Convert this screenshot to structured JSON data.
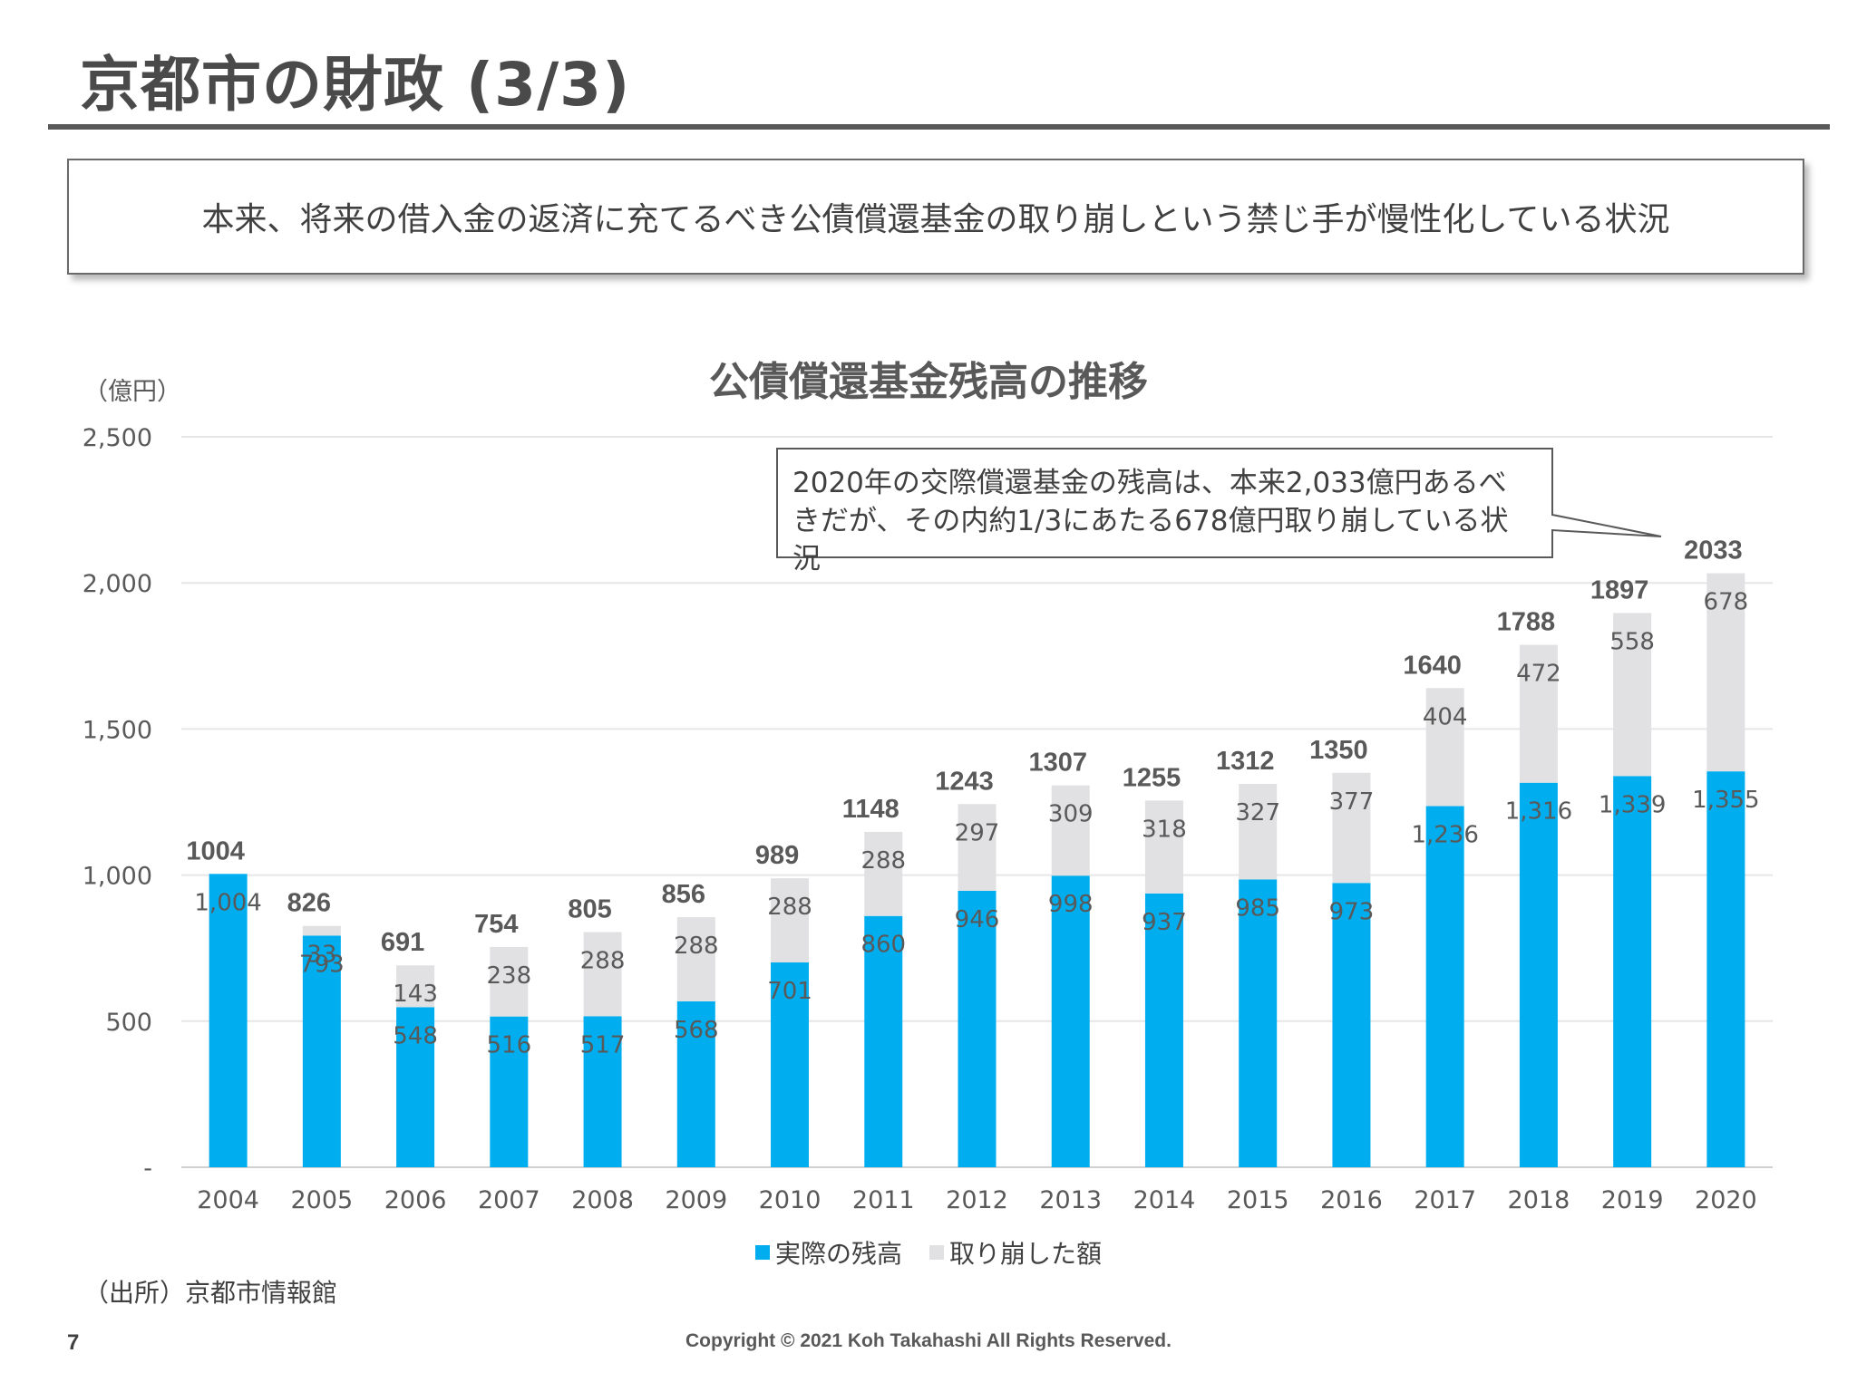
{
  "slide": {
    "title": "京都市の財政 (3/3)",
    "summary": "本来、将来の借入金の返済に充てるべき公債償還基金の取り崩しという禁じ手が慢性化している状況",
    "source": "（出所）京都市情報館",
    "page_number": "7",
    "copyright": "Copyright © 2021 Koh Takahashi All Rights Reserved."
  },
  "callout": {
    "line1": "2020年の交際償還基金の残高は、本来2,033億円あるべ",
    "line2": "きだが、その内約1/3にあたる678億円取り崩している状況"
  },
  "chart_data": {
    "type": "bar",
    "stacked": true,
    "title": "公債償還基金残高の推移",
    "unit_label": "（億円）",
    "categories": [
      "2004",
      "2005",
      "2006",
      "2007",
      "2008",
      "2009",
      "2010",
      "2011",
      "2012",
      "2013",
      "2014",
      "2015",
      "2016",
      "2017",
      "2018",
      "2019",
      "2020"
    ],
    "series": [
      {
        "name": "実際の残高",
        "color": "#00AEEF",
        "values": [
          1004,
          793,
          548,
          516,
          517,
          568,
          701,
          860,
          946,
          998,
          937,
          985,
          973,
          1236,
          1316,
          1339,
          1355
        ],
        "labels": [
          "1,004",
          "793",
          "548",
          "516",
          "517",
          "568",
          "701",
          "860",
          "946",
          "998",
          "937",
          "985",
          "973",
          "1,236",
          "1,316",
          "1,339",
          "1,355"
        ]
      },
      {
        "name": "取り崩した額",
        "color": "#E1E1E3",
        "values": [
          0,
          33,
          143,
          238,
          288,
          288,
          288,
          288,
          297,
          309,
          318,
          327,
          377,
          404,
          472,
          558,
          678
        ],
        "labels": [
          "",
          "33",
          "143",
          "238",
          "288",
          "288",
          "288",
          "288",
          "297",
          "309",
          "318",
          "327",
          "377",
          "404",
          "472",
          "558",
          "678"
        ]
      }
    ],
    "totals": [
      "1004",
      "826",
      "691",
      "754",
      "805",
      "856",
      "989",
      "1148",
      "1243",
      "1307",
      "1255",
      "1312",
      "1350",
      "1640",
      "1788",
      "1897",
      "2033"
    ],
    "ylim": [
      0,
      2500
    ],
    "yticks": [
      0,
      500,
      1000,
      1500,
      2000,
      2500
    ],
    "ytick_labels": [
      "-",
      "500",
      "1,000",
      "1,500",
      "2,000",
      "2,500"
    ],
    "grid": true,
    "legend_position": "bottom"
  }
}
